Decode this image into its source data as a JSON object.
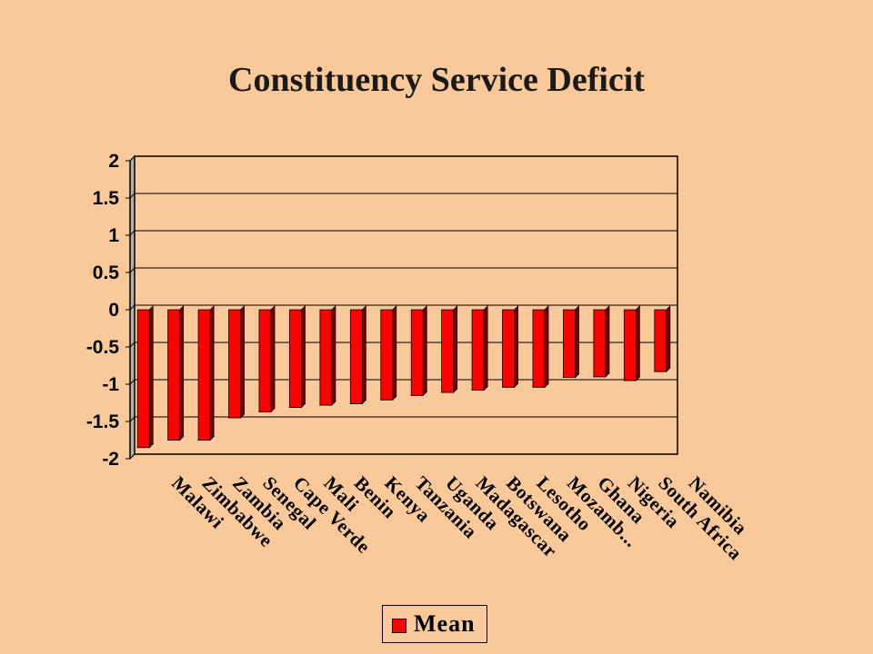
{
  "chart_data": {
    "type": "bar",
    "title": "Constituency Service Deficit",
    "categories": [
      "Malawi",
      "Zimbabwe",
      "Zambia",
      "Senegal",
      "Cape Verde",
      "Mali",
      "Benin",
      "Kenya",
      "Tanzania",
      "Uganda",
      "Madagascar",
      "Botswana",
      "Lesotho",
      "Mozamb...",
      "Ghana",
      "Nigeria",
      "South Africa",
      "Namibia"
    ],
    "series": [
      {
        "name": "Mean",
        "values": [
          -1.85,
          -1.75,
          -1.75,
          -1.45,
          -1.37,
          -1.31,
          -1.28,
          -1.26,
          -1.21,
          -1.15,
          -1.11,
          -1.08,
          -1.04,
          -1.04,
          -0.91,
          -0.9,
          -0.95,
          -0.83
        ],
        "color": "#ff0000"
      }
    ],
    "yticks": [
      "2",
      "1.5",
      "1",
      "0.5",
      "0",
      "-0.5",
      "-1",
      "-1.5",
      "-2"
    ],
    "ylim": [
      -2,
      2
    ],
    "grid": true,
    "legend_position": "bottom"
  }
}
